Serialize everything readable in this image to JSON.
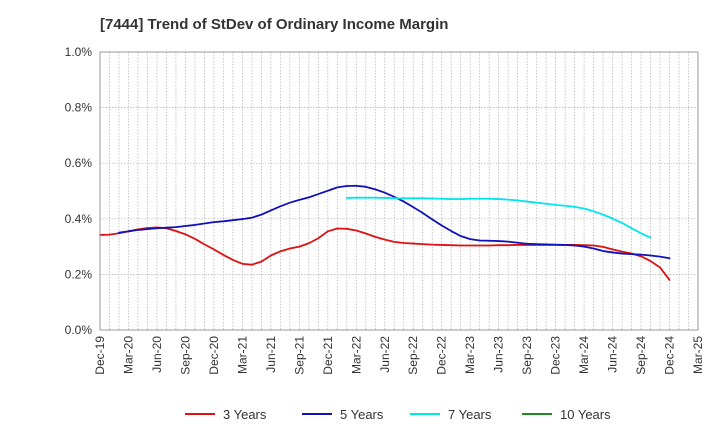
{
  "chart_data": {
    "type": "line",
    "title": "[7444]  Trend of StDev of Ordinary Income Margin",
    "xlabel": "",
    "ylabel": "",
    "x_tick_labels": [
      "Dec-19",
      "Mar-20",
      "Jun-20",
      "Sep-20",
      "Dec-20",
      "Mar-21",
      "Jun-21",
      "Sep-21",
      "Dec-21",
      "Mar-22",
      "Jun-22",
      "Sep-22",
      "Dec-22",
      "Mar-23",
      "Jun-23",
      "Sep-23",
      "Dec-23",
      "Mar-24",
      "Jun-24",
      "Sep-24",
      "Dec-24",
      "Mar-25"
    ],
    "y_tick_labels": [
      "0.0%",
      "0.2%",
      "0.4%",
      "0.6%",
      "0.8%",
      "1.0%"
    ],
    "ylim": [
      0,
      1.0
    ],
    "xlim_months": [
      0,
      63
    ],
    "grid": true,
    "legend_position": "bottom",
    "series": [
      {
        "name": "3 Years",
        "color": "#dd1111",
        "points": [
          [
            0,
            0.342
          ],
          [
            1,
            0.343
          ],
          [
            2,
            0.348
          ],
          [
            3,
            0.355
          ],
          [
            4,
            0.362
          ],
          [
            5,
            0.367
          ],
          [
            6,
            0.369
          ],
          [
            7,
            0.366
          ],
          [
            8,
            0.356
          ],
          [
            9,
            0.344
          ],
          [
            10,
            0.328
          ],
          [
            11,
            0.308
          ],
          [
            12,
            0.29
          ],
          [
            13,
            0.27
          ],
          [
            14,
            0.252
          ],
          [
            15,
            0.238
          ],
          [
            16,
            0.235
          ],
          [
            17,
            0.246
          ],
          [
            18,
            0.268
          ],
          [
            19,
            0.283
          ],
          [
            20,
            0.293
          ],
          [
            21,
            0.3
          ],
          [
            22,
            0.312
          ],
          [
            23,
            0.33
          ],
          [
            24,
            0.355
          ],
          [
            25,
            0.365
          ],
          [
            26,
            0.364
          ],
          [
            27,
            0.358
          ],
          [
            28,
            0.347
          ],
          [
            29,
            0.335
          ],
          [
            30,
            0.325
          ],
          [
            31,
            0.317
          ],
          [
            32,
            0.313
          ],
          [
            33,
            0.311
          ],
          [
            34,
            0.309
          ],
          [
            35,
            0.307
          ],
          [
            36,
            0.306
          ],
          [
            37,
            0.305
          ],
          [
            38,
            0.304
          ],
          [
            39,
            0.304
          ],
          [
            40,
            0.304
          ],
          [
            41,
            0.304
          ],
          [
            42,
            0.305
          ],
          [
            43,
            0.305
          ],
          [
            44,
            0.306
          ],
          [
            45,
            0.306
          ],
          [
            46,
            0.306
          ],
          [
            47,
            0.306
          ],
          [
            48,
            0.306
          ],
          [
            49,
            0.306
          ],
          [
            50,
            0.306
          ],
          [
            51,
            0.305
          ],
          [
            52,
            0.304
          ],
          [
            53,
            0.299
          ],
          [
            54,
            0.29
          ],
          [
            55,
            0.282
          ],
          [
            56,
            0.275
          ],
          [
            57,
            0.265
          ],
          [
            58,
            0.248
          ],
          [
            59,
            0.225
          ],
          [
            60,
            0.18
          ]
        ]
      },
      {
        "name": "5 Years",
        "color": "#1111bb",
        "points": [
          [
            2,
            0.35
          ],
          [
            3,
            0.355
          ],
          [
            4,
            0.36
          ],
          [
            5,
            0.363
          ],
          [
            6,
            0.366
          ],
          [
            7,
            0.368
          ],
          [
            8,
            0.37
          ],
          [
            9,
            0.374
          ],
          [
            10,
            0.378
          ],
          [
            11,
            0.383
          ],
          [
            12,
            0.388
          ],
          [
            13,
            0.391
          ],
          [
            14,
            0.395
          ],
          [
            15,
            0.399
          ],
          [
            16,
            0.404
          ],
          [
            17,
            0.415
          ],
          [
            18,
            0.43
          ],
          [
            19,
            0.445
          ],
          [
            20,
            0.458
          ],
          [
            21,
            0.468
          ],
          [
            22,
            0.477
          ],
          [
            23,
            0.489
          ],
          [
            24,
            0.501
          ],
          [
            25,
            0.513
          ],
          [
            26,
            0.518
          ],
          [
            27,
            0.519
          ],
          [
            28,
            0.515
          ],
          [
            29,
            0.506
          ],
          [
            30,
            0.494
          ],
          [
            31,
            0.479
          ],
          [
            32,
            0.462
          ],
          [
            33,
            0.442
          ],
          [
            34,
            0.421
          ],
          [
            35,
            0.398
          ],
          [
            36,
            0.376
          ],
          [
            37,
            0.356
          ],
          [
            38,
            0.338
          ],
          [
            39,
            0.327
          ],
          [
            40,
            0.322
          ],
          [
            41,
            0.321
          ],
          [
            42,
            0.32
          ],
          [
            43,
            0.318
          ],
          [
            44,
            0.314
          ],
          [
            45,
            0.31
          ],
          [
            46,
            0.309
          ],
          [
            47,
            0.308
          ],
          [
            48,
            0.307
          ],
          [
            49,
            0.306
          ],
          [
            50,
            0.304
          ],
          [
            51,
            0.3
          ],
          [
            52,
            0.293
          ],
          [
            53,
            0.284
          ],
          [
            54,
            0.279
          ],
          [
            55,
            0.275
          ],
          [
            56,
            0.273
          ],
          [
            57,
            0.271
          ],
          [
            58,
            0.268
          ],
          [
            59,
            0.264
          ],
          [
            60,
            0.258
          ]
        ]
      },
      {
        "name": "7 Years",
        "color": "#00e5ee",
        "points": [
          [
            26,
            0.475
          ],
          [
            27,
            0.476
          ],
          [
            28,
            0.476
          ],
          [
            29,
            0.476
          ],
          [
            30,
            0.475
          ],
          [
            31,
            0.474
          ],
          [
            32,
            0.474
          ],
          [
            33,
            0.474
          ],
          [
            34,
            0.474
          ],
          [
            35,
            0.473
          ],
          [
            36,
            0.472
          ],
          [
            37,
            0.471
          ],
          [
            38,
            0.471
          ],
          [
            39,
            0.472
          ],
          [
            40,
            0.472
          ],
          [
            41,
            0.472
          ],
          [
            42,
            0.471
          ],
          [
            43,
            0.469
          ],
          [
            44,
            0.466
          ],
          [
            45,
            0.462
          ],
          [
            46,
            0.458
          ],
          [
            47,
            0.454
          ],
          [
            48,
            0.45
          ],
          [
            49,
            0.447
          ],
          [
            50,
            0.443
          ],
          [
            51,
            0.437
          ],
          [
            52,
            0.427
          ],
          [
            53,
            0.415
          ],
          [
            54,
            0.401
          ],
          [
            55,
            0.385
          ],
          [
            56,
            0.366
          ],
          [
            57,
            0.348
          ],
          [
            58,
            0.332
          ]
        ]
      },
      {
        "name": "10 Years",
        "color": "#1f8a1f",
        "points": []
      }
    ]
  }
}
